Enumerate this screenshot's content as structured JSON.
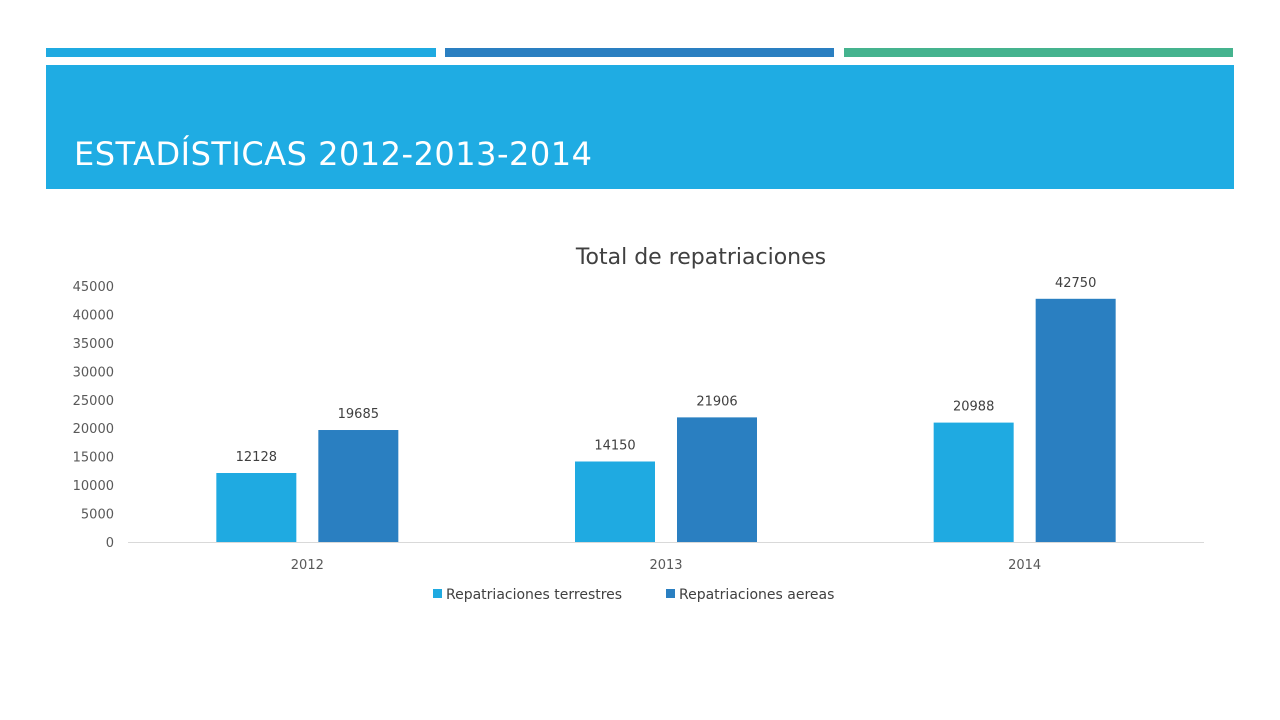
{
  "theme": {
    "accent_light": "#1FAAE1",
    "accent_dark": "#2A7FC1",
    "accent_green": "#45B38E",
    "title_band": "#1FACE3"
  },
  "slide": {
    "title": "ESTADÍSTICAS 2012-2013-2014"
  },
  "chart_data": {
    "type": "bar",
    "title": "Total de repatriaciones",
    "categories": [
      "2012",
      "2013",
      "2014"
    ],
    "series": [
      {
        "name": "Repatriaciones terrestres",
        "values": [
          12128,
          14150,
          20988
        ],
        "color": "#1FAAE1"
      },
      {
        "name": "Repatriaciones aereas",
        "values": [
          19685,
          21906,
          42750
        ],
        "color": "#2A7FC1"
      }
    ],
    "ylim": [
      0,
      45000
    ],
    "yticks": [
      0,
      5000,
      10000,
      15000,
      20000,
      25000,
      30000,
      35000,
      40000,
      45000
    ],
    "grid": false,
    "legend_position": "bottom",
    "data_labels": true
  }
}
